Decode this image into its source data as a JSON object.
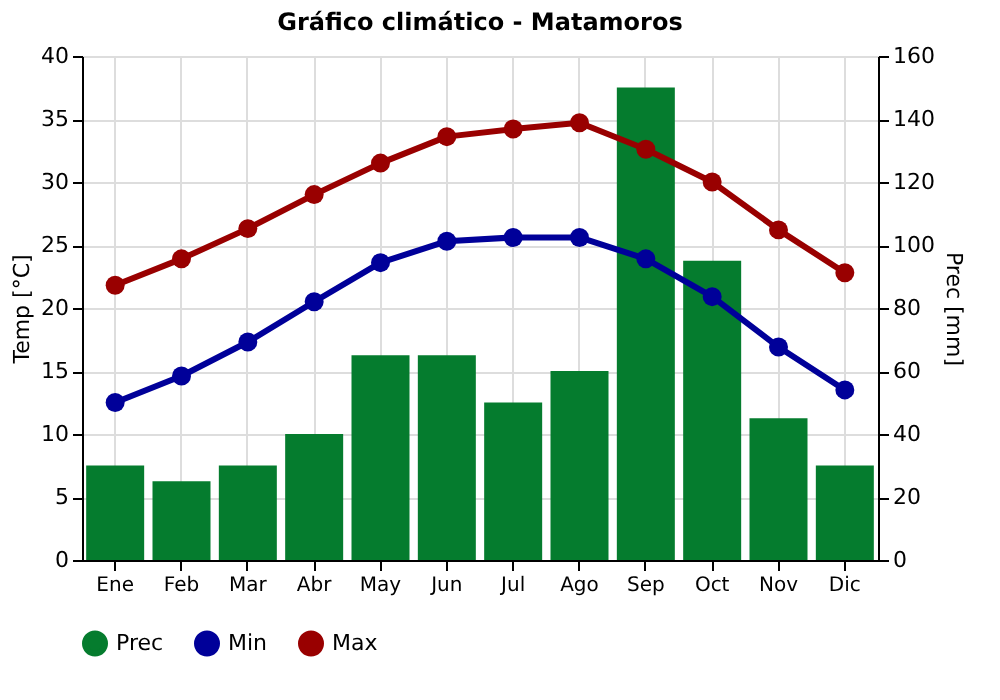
{
  "chart_data": {
    "type": "line",
    "title": "Gráfico climático - Matamoros",
    "ylabel": "Temp [°C]",
    "y2label": "Prec [mm]",
    "categories": [
      "Ene",
      "Feb",
      "Mar",
      "Abr",
      "May",
      "Jun",
      "Jul",
      "Ago",
      "Sep",
      "Oct",
      "Nov",
      "Dic"
    ],
    "series": [
      {
        "name": "Prec",
        "type": "bar",
        "axis": "y2",
        "color": "#057c2e",
        "values": [
          30,
          25,
          30,
          40,
          65,
          65,
          50,
          60,
          150,
          95,
          45,
          30
        ]
      },
      {
        "name": "Min",
        "color": "#000099",
        "values": [
          12.5,
          14.6,
          17.3,
          20.5,
          23.6,
          25.3,
          25.6,
          25.6,
          23.9,
          20.9,
          16.9,
          13.5
        ]
      },
      {
        "name": "Max",
        "color": "#990000",
        "values": [
          21.8,
          23.9,
          26.3,
          29.0,
          31.5,
          33.6,
          34.2,
          34.7,
          32.6,
          30.0,
          26.2,
          22.8
        ]
      }
    ],
    "ylim": [
      0,
      40
    ],
    "yticks": [
      0,
      5,
      10,
      15,
      20,
      25,
      30,
      35,
      40
    ],
    "y2lim": [
      0,
      160
    ],
    "y2ticks": [
      0,
      20,
      40,
      60,
      80,
      100,
      120,
      140,
      160
    ],
    "grid": true,
    "legend": "bottom",
    "marker": "circle",
    "line_style": "solid"
  }
}
